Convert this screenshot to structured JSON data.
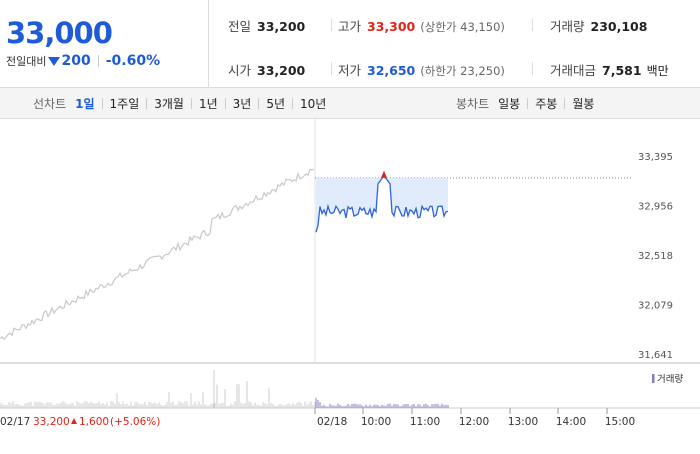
{
  "price": {
    "current": "33,000",
    "change_label": "전일대비",
    "change_abs": "200",
    "change_pct": "-0.60%"
  },
  "stats": {
    "prev_close": {
      "label": "전일",
      "value": "33,200"
    },
    "high": {
      "label": "고가",
      "value": "33,300",
      "sub": "(상한가 43,150)"
    },
    "volume": {
      "label": "거래량",
      "value": "230,108"
    },
    "open": {
      "label": "시가",
      "value": "33,200"
    },
    "low": {
      "label": "저가",
      "value": "32,650",
      "sub": "(하한가 23,250)"
    },
    "turnover": {
      "label": "거래대금",
      "value": "7,581",
      "unit": "백만"
    }
  },
  "line_tabs": {
    "label": "선차트",
    "items": [
      "1일",
      "1주일",
      "3개월",
      "1년",
      "3년",
      "5년",
      "10년"
    ],
    "active": "1일"
  },
  "candle_tabs": {
    "label": "봉차트",
    "items": [
      "일봉",
      "주봉",
      "월봉"
    ]
  },
  "chart_data": {
    "type": "line",
    "y_ticks": [
      "33,395",
      "32,956",
      "32,518",
      "32,079",
      "31,641"
    ],
    "ylim": [
      31641,
      33395
    ],
    "prev_day_label": "02/17",
    "prev_day_summary": {
      "close": "33,200",
      "change": "1,600",
      "pct": "(+5.06%)"
    },
    "today_label": "02/18",
    "x_ticks": [
      "10:00",
      "11:00",
      "12:00",
      "13:00",
      "14:00",
      "15:00"
    ],
    "volume_legend": "거래량",
    "colors": {
      "prev_line": "#c8c8c8",
      "today_line": "#2f63d6",
      "today_fill": "#dde9fb",
      "high_marker": "#e2231a",
      "volume": "#8a7cc4"
    }
  }
}
